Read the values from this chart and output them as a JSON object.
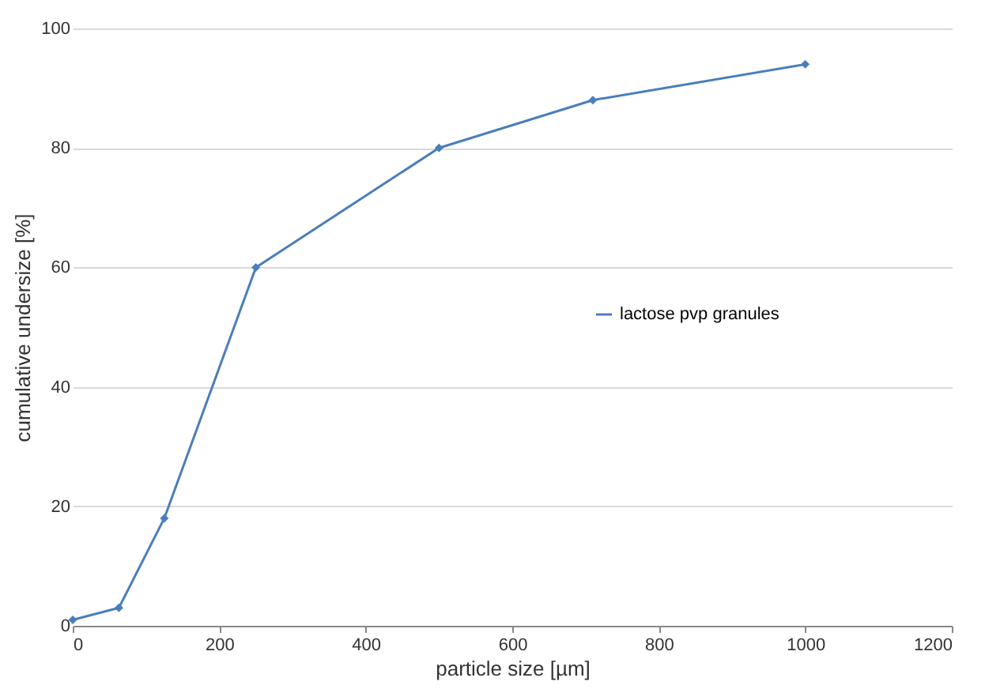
{
  "chart_data": {
    "type": "line",
    "xlabel": "particle size [µm]",
    "ylabel": "cumulative undersize [%]",
    "x": [
      0,
      63,
      125,
      250,
      500,
      710,
      1000
    ],
    "series": [
      {
        "name": "lactose pvp granules",
        "color": "#4a7ebb",
        "values": [
          1,
          3,
          18,
          60,
          80,
          88,
          94
        ]
      }
    ],
    "xlim": [
      0,
      1200
    ],
    "xticks": [
      0,
      200,
      400,
      600,
      800,
      1000,
      1200
    ],
    "ylim": [
      0,
      100
    ],
    "yticks": [
      0,
      20,
      40,
      60,
      80,
      100
    ],
    "grid": "y",
    "legend": "right",
    "marker": "diamond",
    "line_style": "solid"
  }
}
